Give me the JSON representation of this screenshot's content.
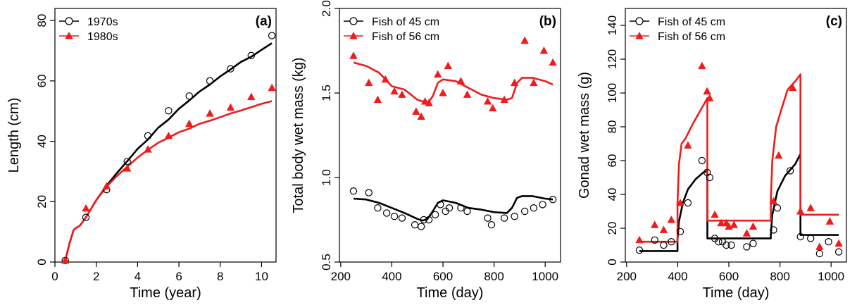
{
  "colors": {
    "black": "#000000",
    "red": "#ee1c1c"
  },
  "chart_data": [
    {
      "type": "line",
      "panel_label": "(a)",
      "xlabel": "Time (year)",
      "ylabel": "Length (cm)",
      "xlim": [
        0,
        10.7
      ],
      "ylim": [
        0,
        84
      ],
      "xticks": [
        0,
        2,
        4,
        6,
        8,
        10
      ],
      "yticks": [
        0,
        20,
        40,
        60,
        80
      ],
      "legend": {
        "placement": "top-left",
        "entries": [
          "1970s",
          "1980s"
        ]
      },
      "series": [
        {
          "name": "1970s",
          "color": "#000000",
          "kind": "points",
          "marker": "circle",
          "x": [
            0.5,
            1.5,
            2.5,
            3.5,
            4.5,
            5.5,
            6.5,
            7.5,
            8.5,
            9.5,
            10.5
          ],
          "y": [
            0.5,
            14.8,
            24.0,
            33.3,
            41.8,
            50.1,
            55.0,
            60.0,
            64.0,
            68.4,
            75.0
          ]
        },
        {
          "name": "1980s",
          "color": "#ee1c1c",
          "kind": "points",
          "marker": "triangle",
          "x": [
            0.5,
            1.5,
            2.5,
            3.5,
            4.5,
            5.5,
            6.5,
            7.5,
            8.5,
            9.5,
            10.5
          ],
          "y": [
            0.5,
            17.8,
            25.1,
            31.0,
            37.3,
            41.8,
            45.8,
            49.2,
            51.2,
            54.7,
            57.7
          ]
        },
        {
          "name": "1970s",
          "color": "#000000",
          "kind": "line",
          "x": [
            0.5,
            0.7,
            0.9,
            1.0,
            1.2,
            1.5,
            2.0,
            2.5,
            3.0,
            3.5,
            4.0,
            4.5,
            5.0,
            5.5,
            6.0,
            6.5,
            7.0,
            7.5,
            8.0,
            8.5,
            9.0,
            9.5,
            10.0,
            10.5
          ],
          "y": [
            0.5,
            6.0,
            10.5,
            11.2,
            12.0,
            14.8,
            20.5,
            25.3,
            29.5,
            33.4,
            37.5,
            40.6,
            44.5,
            47.2,
            50.8,
            53.5,
            56.5,
            58.8,
            61.5,
            63.8,
            66.3,
            68.0,
            70.3,
            72.5
          ]
        },
        {
          "name": "1980s",
          "color": "#ee1c1c",
          "kind": "line",
          "x": [
            0.5,
            0.7,
            0.9,
            1.0,
            1.2,
            1.5,
            2.0,
            2.5,
            3.0,
            3.5,
            4.0,
            4.5,
            5.0,
            5.5,
            6.0,
            6.5,
            7.0,
            7.5,
            8.0,
            8.5,
            9.0,
            9.5,
            10.0,
            10.5
          ],
          "y": [
            0.5,
            6.0,
            10.5,
            11.2,
            12.0,
            14.8,
            20.5,
            25.0,
            28.5,
            31.6,
            34.6,
            37.2,
            39.5,
            41.2,
            43.0,
            44.2,
            45.8,
            46.8,
            48.0,
            49.2,
            50.2,
            51.3,
            52.4,
            53.3
          ]
        }
      ]
    },
    {
      "type": "line",
      "panel_label": "(b)",
      "xlabel": "Time (day)",
      "ylabel": "Total body wet mass (kg)",
      "xlim": [
        195,
        1060
      ],
      "ylim": [
        0.5,
        2.0
      ],
      "xticks": [
        200,
        400,
        600,
        800,
        1000
      ],
      "yticks": [
        0.5,
        1.0,
        1.5,
        2.0
      ],
      "ytick_labels": [
        "0.5",
        "1.0",
        "1.5",
        "2.0"
      ],
      "legend": {
        "placement": "top-left",
        "entries": [
          "Fish of 45 cm",
          "Fish of 56 cm"
        ]
      },
      "series": [
        {
          "name": "Fish of 45 cm",
          "color": "#000000",
          "kind": "points",
          "marker": "circle",
          "x": [
            250,
            310,
            345,
            380,
            410,
            440,
            490,
            515,
            525,
            545,
            570,
            590,
            610,
            625,
            670,
            695,
            775,
            790,
            840,
            880,
            920,
            955,
            990,
            1030
          ],
          "y": [
            0.92,
            0.91,
            0.82,
            0.79,
            0.77,
            0.76,
            0.72,
            0.71,
            0.75,
            0.75,
            0.78,
            0.84,
            0.8,
            0.82,
            0.82,
            0.8,
            0.76,
            0.72,
            0.76,
            0.77,
            0.8,
            0.82,
            0.84,
            0.87
          ]
        },
        {
          "name": "Fish of 56 cm",
          "color": "#ee1c1c",
          "kind": "points",
          "marker": "triangle",
          "x": [
            250,
            310,
            345,
            375,
            410,
            440,
            495,
            515,
            530,
            545,
            580,
            600,
            620,
            670,
            695,
            775,
            795,
            840,
            880,
            920,
            955,
            995,
            1030
          ],
          "y": [
            1.72,
            1.56,
            1.46,
            1.58,
            1.51,
            1.49,
            1.39,
            1.36,
            1.45,
            1.44,
            1.61,
            1.5,
            1.66,
            1.57,
            1.49,
            1.45,
            1.41,
            1.46,
            1.56,
            1.81,
            1.56,
            1.75,
            1.68
          ]
        },
        {
          "name": "Fish of 45 cm",
          "color": "#000000",
          "kind": "line",
          "x": [
            250,
            300,
            350,
            400,
            450,
            500,
            520,
            540,
            560,
            580,
            600,
            650,
            700,
            750,
            800,
            850,
            870,
            890,
            910,
            950,
            1000,
            1030
          ],
          "y": [
            0.875,
            0.87,
            0.85,
            0.82,
            0.79,
            0.755,
            0.745,
            0.755,
            0.8,
            0.85,
            0.865,
            0.85,
            0.82,
            0.81,
            0.795,
            0.79,
            0.82,
            0.88,
            0.89,
            0.89,
            0.875,
            0.87
          ]
        },
        {
          "name": "Fish of 56 cm",
          "color": "#ee1c1c",
          "kind": "line",
          "x": [
            250,
            300,
            350,
            400,
            450,
            500,
            520,
            540,
            560,
            580,
            600,
            650,
            700,
            750,
            800,
            850,
            870,
            890,
            910,
            950,
            1000,
            1030
          ],
          "y": [
            1.68,
            1.66,
            1.62,
            1.54,
            1.52,
            1.46,
            1.45,
            1.44,
            1.48,
            1.56,
            1.58,
            1.57,
            1.53,
            1.49,
            1.47,
            1.46,
            1.47,
            1.56,
            1.59,
            1.59,
            1.57,
            1.55
          ]
        }
      ]
    },
    {
      "type": "line",
      "panel_label": "(c)",
      "xlabel": "Time (day)",
      "ylabel": "Gonad wet mass (g)",
      "xlim": [
        195,
        1060
      ],
      "ylim": [
        0,
        150
      ],
      "xticks": [
        200,
        400,
        600,
        800,
        1000
      ],
      "yticks": [
        0,
        20,
        40,
        60,
        80,
        100,
        120,
        140
      ],
      "legend": {
        "placement": "top-left",
        "entries": [
          "Fish of 45 cm",
          "Fish of 56 cm"
        ]
      },
      "series": [
        {
          "name": "Fish of 45 cm",
          "color": "#000000",
          "kind": "points",
          "marker": "circle",
          "x": [
            250,
            310,
            345,
            375,
            410,
            440,
            495,
            515,
            525,
            545,
            560,
            575,
            590,
            610,
            670,
            695,
            775,
            790,
            840,
            880,
            920,
            955,
            990,
            1030
          ],
          "y": [
            7,
            13,
            10,
            12,
            18,
            35,
            60,
            53,
            50,
            14,
            12,
            12,
            10,
            10,
            9,
            11,
            19,
            32,
            54,
            15,
            14,
            5,
            12,
            6
          ]
        },
        {
          "name": "Fish of 56 cm",
          "color": "#ee1c1c",
          "kind": "points",
          "marker": "triangle",
          "x": [
            250,
            310,
            345,
            375,
            410,
            440,
            495,
            515,
            525,
            545,
            570,
            590,
            600,
            620,
            670,
            695,
            775,
            795,
            850,
            880,
            920,
            955,
            995,
            1030
          ],
          "y": [
            13,
            22,
            19,
            25,
            35,
            69,
            116,
            101,
            97,
            28,
            23,
            23,
            21,
            22,
            17,
            21,
            36,
            63,
            103,
            30,
            32,
            9,
            24,
            11
          ]
        },
        {
          "name": "Fish of 45 cm",
          "color": "#000000",
          "kind": "line",
          "x": [
            250,
            399,
            399,
            405,
            420,
            440,
            470,
            500,
            516,
            516,
            764,
            764,
            770,
            790,
            820,
            860,
            880,
            880,
            1030
          ],
          "y": [
            6.5,
            6.5,
            13,
            24,
            35,
            43,
            49,
            53,
            54,
            14,
            14,
            16,
            28,
            42,
            51,
            58,
            64,
            16,
            16
          ]
        },
        {
          "name": "Fish of 56 cm",
          "color": "#ee1c1c",
          "kind": "line",
          "x": [
            250,
            399,
            399,
            405,
            415,
            430,
            460,
            490,
            516,
            516,
            764,
            764,
            770,
            785,
            805,
            830,
            860,
            880,
            880,
            1030
          ],
          "y": [
            12,
            12,
            35,
            58,
            70,
            73,
            82,
            90,
            97,
            24.5,
            24.5,
            36,
            60,
            80,
            90,
            102,
            107,
            111,
            28,
            28
          ]
        }
      ]
    }
  ]
}
